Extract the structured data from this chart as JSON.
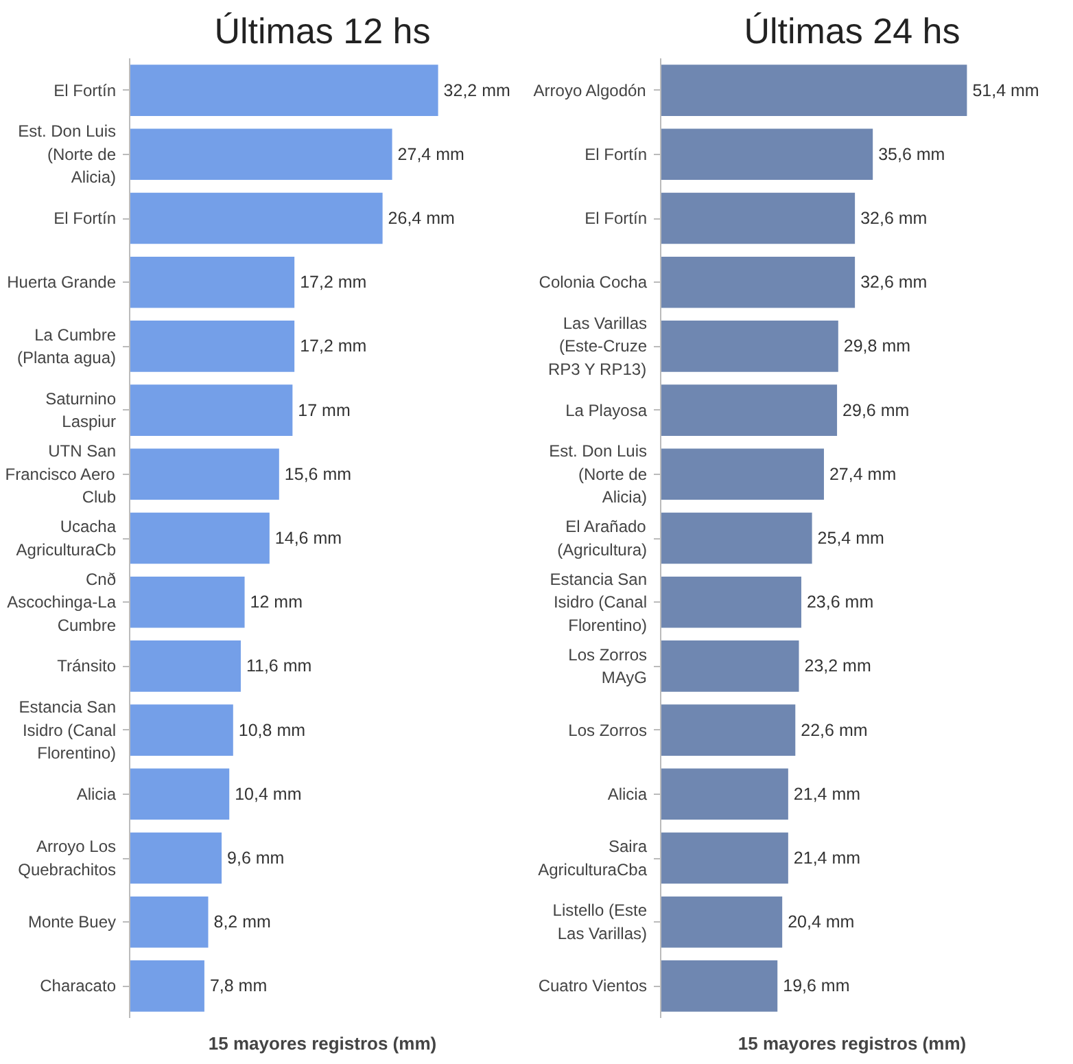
{
  "chart_data": [
    {
      "type": "bar",
      "orientation": "horizontal",
      "title": "Últimas 12 hs",
      "xlabel": "15 mayores registros (mm)",
      "tick_labels": "y",
      "grid": false,
      "categories": [
        "El Fortín",
        "Est. Don Luis (Norte de Alicia)",
        "El Fortín",
        "Huerta Grande",
        "La Cumbre (Planta agua)",
        "Saturnino Laspiur",
        "UTN San Francisco Aero Club",
        "Ucacha AgriculturaCb",
        "Cnð Ascochinga-La Cumbre",
        "Tránsito",
        "Estancia San Isidro (Canal Florentino)",
        "Alicia",
        "Arroyo Los Quebrachitos",
        "Monte Buey",
        "Characato"
      ],
      "series": [
        {
          "color": "#749fe8",
          "values": [
            32.2,
            27.4,
            26.4,
            17.2,
            17.2,
            17,
            15.6,
            14.6,
            12,
            11.6,
            10.8,
            10.4,
            9.6,
            8.2,
            7.8
          ],
          "value_labels": [
            "32,2 mm",
            "27,4 mm",
            "26,4 mm",
            "17,2 mm",
            "17,2 mm",
            "17 mm",
            "15,6 mm",
            "14,6 mm",
            "12 mm",
            "11,6 mm",
            "10,8 mm",
            "10,4 mm",
            "9,6 mm",
            "8,2 mm",
            "7,8 mm"
          ]
        }
      ]
    },
    {
      "type": "bar",
      "orientation": "horizontal",
      "title": "Últimas 24 hs",
      "xlabel": "15 mayores registros (mm)",
      "tick_labels": "y",
      "grid": false,
      "categories": [
        "Arroyo Algodón",
        "El Fortín",
        "El Fortín",
        "Colonia Cocha",
        "Las Varillas (Este-Cruze RP3 Y RP13)",
        "La Playosa",
        "Est. Don Luis (Norte de Alicia)",
        "El Arañado (Agricultura)",
        "Estancia San Isidro (Canal Florentino)",
        "Los Zorros MAyG",
        "Los Zorros",
        "Alicia",
        "Saira AgriculturaCba",
        "Listello (Este Las Varillas)",
        "Cuatro Vientos"
      ],
      "series": [
        {
          "color": "#6f87b1",
          "values": [
            51.4,
            35.6,
            32.6,
            32.6,
            29.8,
            29.6,
            27.4,
            25.4,
            23.6,
            23.2,
            22.6,
            21.4,
            21.4,
            20.4,
            19.6
          ],
          "value_labels": [
            "51,4 mm",
            "35,6 mm",
            "32,6 mm",
            "32,6 mm",
            "29,8 mm",
            "29,6 mm",
            "27,4 mm",
            "25,4 mm",
            "23,6 mm",
            "23,2 mm",
            "22,6 mm",
            "21,4 mm",
            "21,4 mm",
            "20,4 mm",
            "19,6 mm"
          ]
        }
      ]
    }
  ]
}
